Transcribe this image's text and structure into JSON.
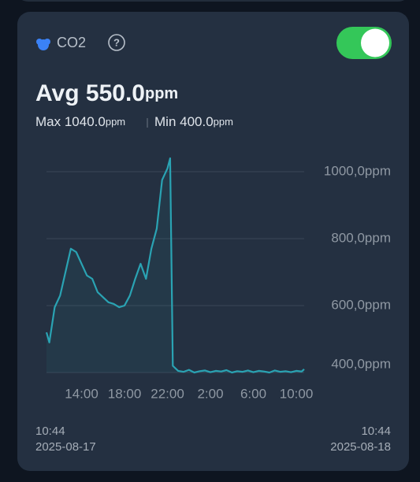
{
  "header": {
    "label": "CO2",
    "help": "?"
  },
  "summary": {
    "avg": "Avg 550.0",
    "avg_unit": "ppm",
    "max": "Max 1040.0",
    "max_unit": "ppm",
    "min": "Min 400.0",
    "min_unit": "ppm"
  },
  "chart_data": {
    "type": "line",
    "color": "#2aa3b3",
    "x": [
      10.7333,
      11,
      11.5,
      12,
      12.5,
      13,
      13.5,
      14,
      14.5,
      15,
      15.5,
      16,
      16.5,
      17,
      17.5,
      18,
      18.5,
      19,
      19.5,
      20,
      20.5,
      21,
      21.5,
      22,
      22.25,
      22.5,
      23,
      23.5,
      24,
      24.5,
      25,
      25.5,
      26,
      26.5,
      27,
      27.5,
      28,
      28.5,
      29,
      29.5,
      30,
      30.5,
      31,
      31.5,
      32,
      32.5,
      33,
      33.5,
      34,
      34.5,
      34.7333
    ],
    "values": [
      520,
      490,
      595,
      630,
      700,
      770,
      760,
      725,
      690,
      680,
      640,
      625,
      610,
      605,
      595,
      600,
      630,
      680,
      725,
      680,
      770,
      830,
      975,
      1010,
      1040,
      420,
      405,
      402,
      408,
      400,
      404,
      406,
      401,
      405,
      403,
      407,
      400,
      404,
      402,
      406,
      401,
      405,
      403,
      400,
      406,
      402,
      404,
      401,
      405,
      403,
      410
    ],
    "xlim": [
      10.7333,
      34.7333
    ],
    "xticks": [
      {
        "value": 14,
        "label": "14:00"
      },
      {
        "value": 18,
        "label": "18:00"
      },
      {
        "value": 22,
        "label": "22:00"
      },
      {
        "value": 26,
        "label": "2:00"
      },
      {
        "value": 30,
        "label": "6:00"
      },
      {
        "value": 34,
        "label": "10:00"
      }
    ],
    "ylim": [
      400,
      1050
    ],
    "yticks": [
      {
        "value": 1000,
        "label": "1000,0ppm"
      },
      {
        "value": 800,
        "label": "800,0ppm"
      },
      {
        "value": 600,
        "label": "600,0ppm"
      },
      {
        "value": 400,
        "label": "400,0ppm"
      }
    ],
    "grid": true
  },
  "footer": {
    "start_time": "10:44",
    "start_date": "2025-08-17",
    "end_time": "10:44",
    "end_date": "2025-08-18"
  }
}
